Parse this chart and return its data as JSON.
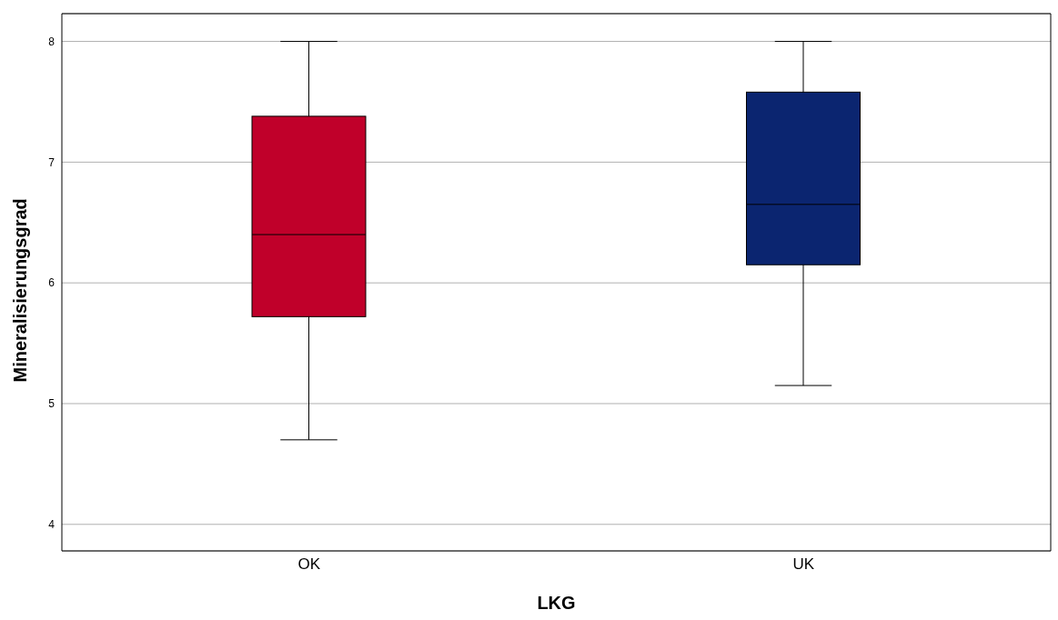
{
  "chart_data": {
    "type": "box",
    "xlabel": "LKG",
    "ylabel": "Mineralisierungsgrad",
    "categories": [
      "OK",
      "UK"
    ],
    "colors": [
      "#c0002a",
      "#0b2570"
    ],
    "boxes": [
      {
        "low": 4.7,
        "q1": 5.72,
        "median": 6.4,
        "q3": 7.38,
        "high": 8
      },
      {
        "low": 5.15,
        "q1": 6.15,
        "median": 6.65,
        "q3": 7.58,
        "high": 8
      }
    ],
    "ylim": [
      3.78,
      8.23
    ],
    "yticks": [
      4,
      5,
      6,
      7,
      8
    ],
    "grid": "y",
    "legend": false
  }
}
